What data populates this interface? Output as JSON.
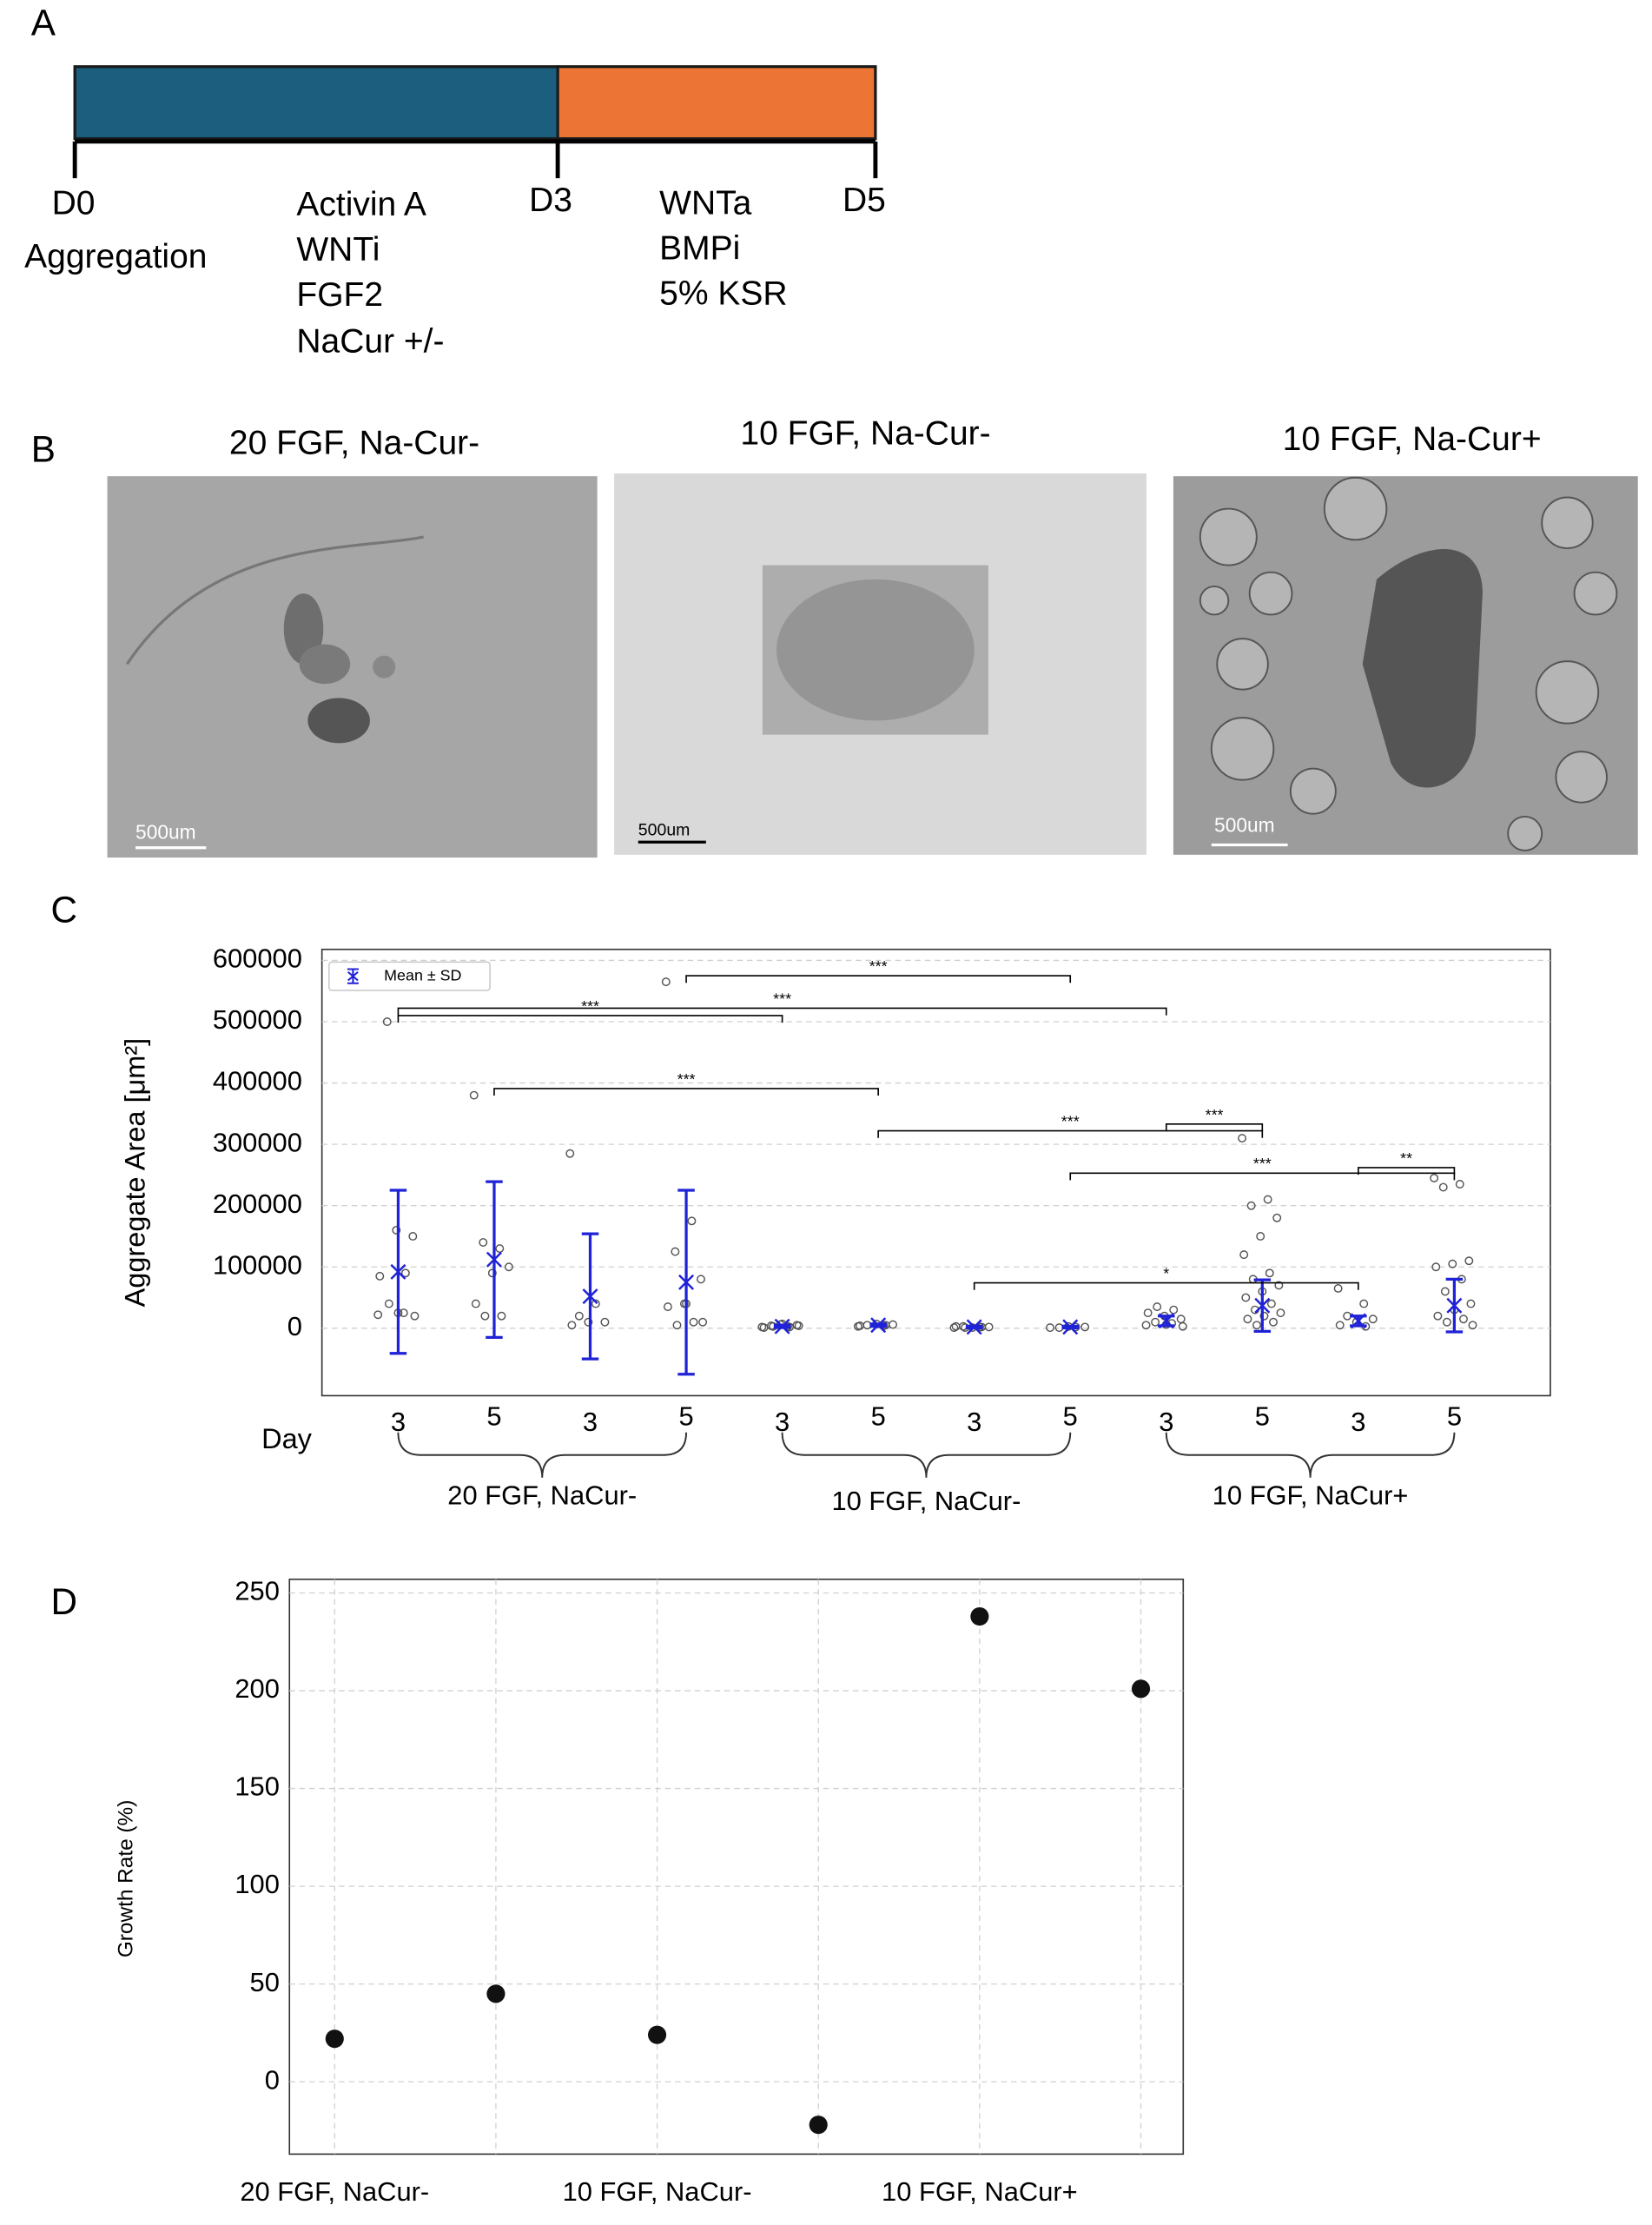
{
  "panel_a": {
    "panel_label": "A",
    "phase_colors": [
      "#1b5e7e",
      "#ec7535"
    ],
    "timepoints": [
      "D0",
      "D3",
      "D5"
    ],
    "start_label": "Aggregation",
    "phase1_factors": [
      "Activin A",
      "WNTi",
      "FGF2",
      "NaCur +/-"
    ],
    "phase2_factors": [
      "WNTa",
      "BMPi",
      "5% KSR"
    ]
  },
  "panel_b": {
    "panel_label": "B",
    "images": [
      {
        "title": "20 FGF, Na-Cur-",
        "scale_bar": "500um"
      },
      {
        "title": "10 FGF, Na-Cur-",
        "scale_bar": "500um"
      },
      {
        "title": "10 FGF, Na-Cur+",
        "scale_bar": "500um"
      }
    ]
  },
  "chart_data": [
    {
      "type": "strip",
      "panel_label": "C",
      "ylabel": "Aggregate Area [μm²]",
      "xlabel": "Day",
      "categories": [
        "3",
        "5",
        "3",
        "5",
        "3",
        "5",
        "3",
        "5",
        "3",
        "5",
        "3",
        "5"
      ],
      "groups": [
        "20 FGF, NaCur-",
        "10 FGF, NaCur-",
        "10 FGF, NaCur+"
      ],
      "series": [
        {
          "name": "Mean ± SD",
          "color": "#1f22d6",
          "values": [
            92000,
            112000,
            52000,
            75000,
            3000,
            5000,
            2000,
            2000,
            12000,
            37000,
            12000,
            37000
          ],
          "errors": [
            133000,
            127000,
            102000,
            150000,
            2000,
            2000,
            1500,
            1500,
            8000,
            42000,
            8000,
            43000
          ]
        }
      ],
      "point_color": "#555555",
      "points": [
        [
          22000,
          25000,
          500000,
          150000,
          160000,
          85000,
          90000,
          40000,
          20000,
          25000
        ],
        [
          380000,
          130000,
          140000,
          100000,
          90000,
          40000,
          20000,
          20000
        ],
        [
          285000,
          40000,
          20000,
          10000,
          10000,
          5000
        ],
        [
          565000,
          175000,
          125000,
          80000,
          40000,
          35000,
          10000,
          5000,
          10000,
          40000
        ],
        [
          2000,
          3000,
          4000,
          5000,
          6000,
          1000,
          2000,
          3000,
          4000,
          7000
        ],
        [
          3000,
          4000,
          5000,
          6000,
          7000,
          4000,
          5000
        ],
        [
          1000,
          2000,
          3000,
          2000,
          1000,
          3000,
          2000,
          1000
        ],
        [
          1000,
          2000,
          1000,
          2000,
          3000
        ],
        [
          5000,
          8000,
          10000,
          15000,
          20000,
          25000,
          30000,
          35000,
          3000,
          6000
        ],
        [
          310000,
          210000,
          200000,
          180000,
          150000,
          120000,
          90000,
          80000,
          70000,
          60000,
          50000,
          40000,
          30000,
          25000,
          20000,
          15000,
          10000,
          5000
        ],
        [
          65000,
          40000,
          20000,
          15000,
          10000,
          5000,
          3000
        ],
        [
          245000,
          235000,
          230000,
          110000,
          105000,
          100000,
          80000,
          60000,
          40000,
          30000,
          20000,
          15000,
          10000,
          5000
        ]
      ],
      "significance": [
        {
          "from": 3,
          "to": 7,
          "y": 575000,
          "label": "***"
        },
        {
          "from": 0,
          "to": 8,
          "y": 522000,
          "label": "***"
        },
        {
          "from": 0,
          "to": 4,
          "y": 510000,
          "label": "***"
        },
        {
          "from": 1,
          "to": 5,
          "y": 391000,
          "label": "***"
        },
        {
          "from": 8,
          "to": 9,
          "y": 333000,
          "label": "***"
        },
        {
          "from": 5,
          "to": 9,
          "y": 322000,
          "label": "***"
        },
        {
          "from": 10,
          "to": 11,
          "y": 262000,
          "label": "**"
        },
        {
          "from": 7,
          "to": 11,
          "y": 253000,
          "label": "***"
        },
        {
          "from": 6,
          "to": 10,
          "y": 74000,
          "label": "*"
        }
      ],
      "ylim": [
        -110000,
        618000
      ],
      "yticks": [
        0,
        100000,
        200000,
        300000,
        400000,
        500000,
        600000
      ],
      "grid": true,
      "legend": "upper left"
    },
    {
      "type": "scatter",
      "panel_label": "D",
      "ylabel": "Growth Rate (%)",
      "categories": [
        "20 FGF, NaCur-",
        null,
        "10 FGF, NaCur-",
        null,
        "10 FGF, NaCur+",
        null
      ],
      "values": [
        22,
        45,
        24,
        -22,
        238,
        201
      ],
      "color": "#111111",
      "ylim": [
        -37,
        257
      ],
      "yticks": [
        0,
        50,
        100,
        150,
        200,
        250
      ],
      "grid": true
    }
  ]
}
